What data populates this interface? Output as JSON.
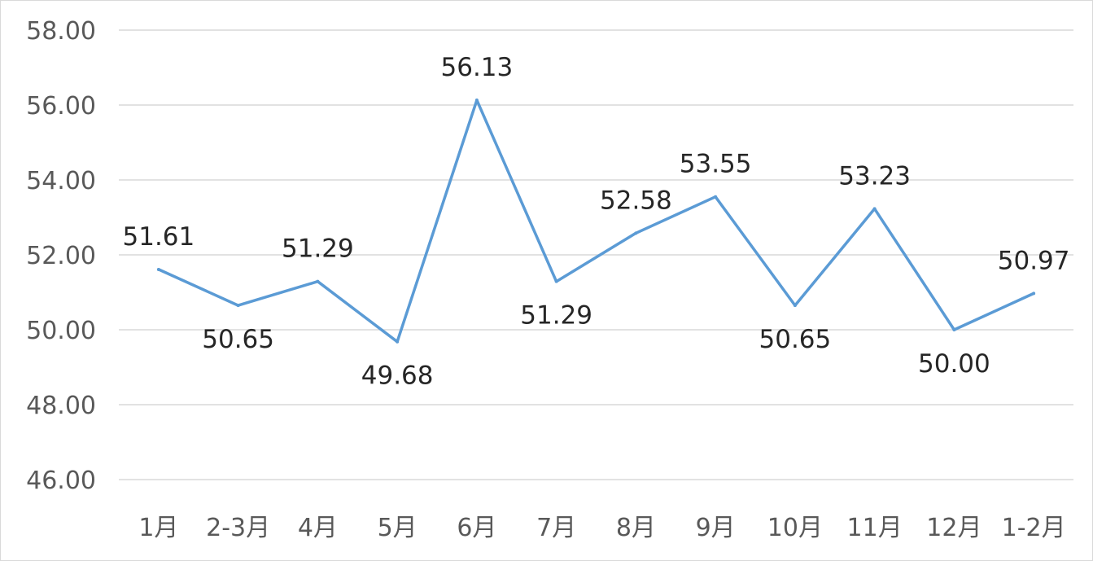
{
  "chart_data": {
    "type": "line",
    "title": "",
    "xlabel": "",
    "ylabel": "",
    "categories": [
      "1月",
      "2-3月",
      "4月",
      "5月",
      "6月",
      "7月",
      "8月",
      "9月",
      "10月",
      "11月",
      "12月",
      "1-2月"
    ],
    "series": [
      {
        "values": [
          51.61,
          50.65,
          51.29,
          49.68,
          56.13,
          51.29,
          52.58,
          53.55,
          50.65,
          53.23,
          50.0,
          50.97
        ],
        "color": "#5b9bd5"
      }
    ],
    "data_labels": [
      "51.61",
      "50.65",
      "51.29",
      "49.68",
      "56.13",
      "51.29",
      "52.58",
      "53.55",
      "50.65",
      "53.23",
      "50.00",
      "50.97"
    ],
    "ylim": [
      46,
      58
    ],
    "y_ticks": [
      "46.00",
      "48.00",
      "50.00",
      "52.00",
      "54.00",
      "56.00",
      "58.00"
    ],
    "grid": true,
    "legend": "none"
  }
}
